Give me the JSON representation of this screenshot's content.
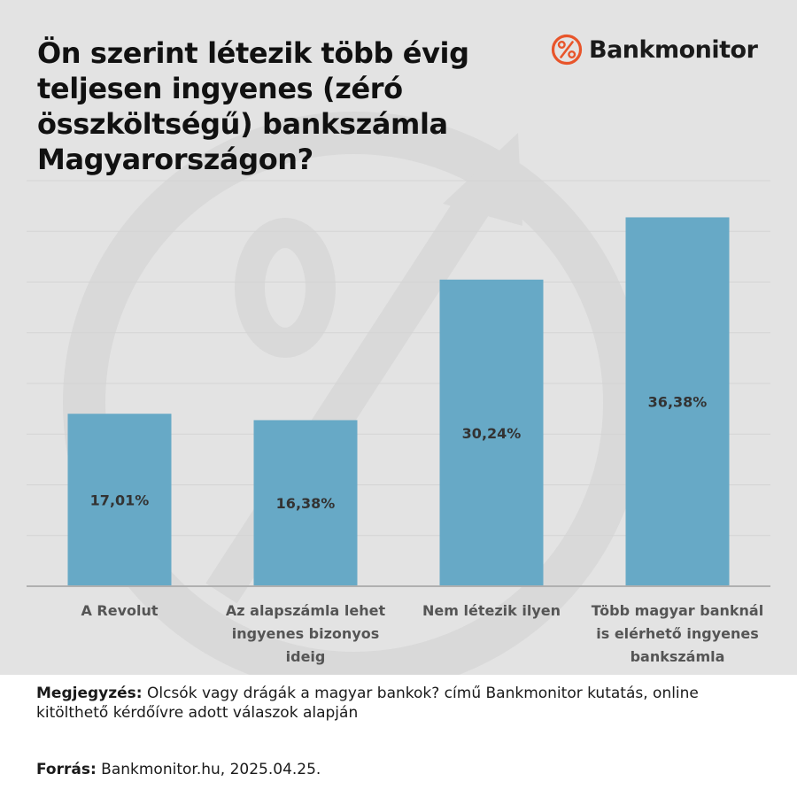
{
  "brand": {
    "name": "Bankmonitor",
    "accent_color": "#e8552b",
    "logo_icon": "percent-circle-icon"
  },
  "colors": {
    "panel_background": "#e3e3e3",
    "bar": "#67a9c6",
    "bar_label": "#333333",
    "category_label": "#555555"
  },
  "chart_data": {
    "type": "bar",
    "title": "Ön szerint létezik több évig teljesen ingyenes (zéró összköltségű) bankszámla Magyarországon?",
    "categories": [
      [
        "A Revolut"
      ],
      [
        "Az alapszámla lehet",
        "ingyenes bizonyos",
        "ideig"
      ],
      [
        "Nem létezik ilyen"
      ],
      [
        "Több magyar banknál",
        "is elérhető ingyenes",
        "bankszámla"
      ]
    ],
    "values": [
      17.01,
      16.38,
      30.24,
      36.38
    ],
    "value_labels": [
      "17,01%",
      "16,38%",
      "30,24%",
      "36,38%"
    ],
    "ylim": [
      0,
      40
    ],
    "grid": true,
    "legend": "none",
    "xlabel": "",
    "ylabel": ""
  },
  "footer": {
    "note_label": "Megjegyzés:",
    "note_text": "Olcsók vagy drágák a magyar bankok? című Bankmonitor kutatás, online kitölthető kérdőívre adott válaszok alapján",
    "source_label": "Forrás:",
    "source_text": "Bankmonitor.hu, 2025.04.25."
  }
}
